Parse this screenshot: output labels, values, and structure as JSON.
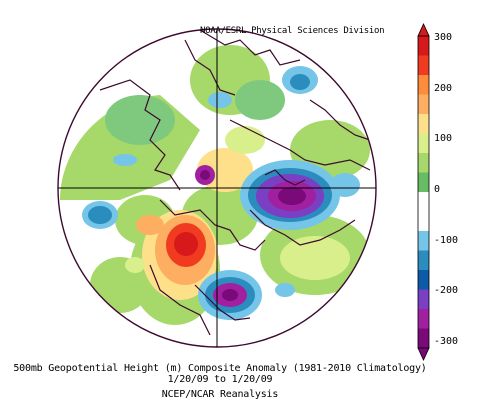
{
  "credit": "NOAA/ESRL Physical Sciences Division",
  "caption": {
    "line1": "500mb Geopotential Height (m) Composite Anomaly (1981-2010 Climatology)",
    "line2": "1/20/09 to 1/20/09",
    "line3": "NCEP/NCAR Reanalysis"
  },
  "colorbar": {
    "labels": [
      "300",
      "200",
      "100",
      "0",
      "-100",
      "-200",
      "-300"
    ],
    "colors": [
      "#d7191c",
      "#f03b20",
      "#fd8d3c",
      "#fdae61",
      "#fee08b",
      "#d9ef8b",
      "#a6d96a",
      "#66bd63",
      "#ffffff",
      "#ffffff",
      "#74c5e8",
      "#2b8cbe",
      "#0c5aa8",
      "#7b3fc4",
      "#a020a0",
      "#7a0a7a"
    ]
  },
  "colors": {
    "coastline": "#3d0a2e",
    "grid": "#000000"
  }
}
